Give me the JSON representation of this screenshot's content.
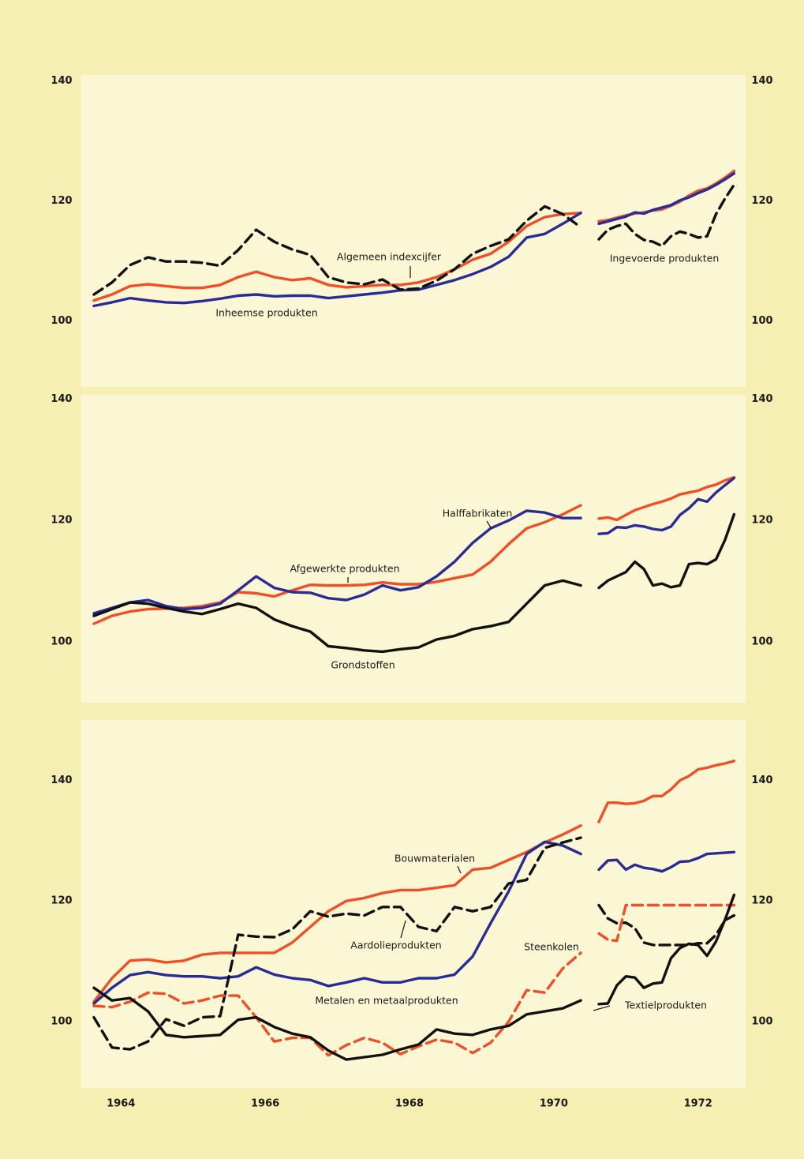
{
  "chart_data": [
    {
      "type": "line",
      "x": [
        1963.625,
        1963.875,
        1964.125,
        1964.375,
        1964.625,
        1964.875,
        1965.125,
        1965.375,
        1965.625,
        1965.875,
        1966.125,
        1966.375,
        1966.625,
        1966.875,
        1967.125,
        1967.375,
        1967.625,
        1967.875,
        1968.125,
        1968.375,
        1968.625,
        1968.875,
        1969.125,
        1969.375,
        1969.625,
        1969.875,
        1970.125,
        1970.375,
        1970.5,
        1970.625,
        1970.75,
        1970.875,
        1971,
        1971.125,
        1971.25,
        1971.375,
        1971.5,
        1971.625,
        1971.75,
        1971.875,
        1972,
        1972.125,
        1972.25,
        1972.375,
        1972.5
      ],
      "xlim": [
        1963.45,
        1972.66
      ],
      "ylim": [
        89,
        141
      ],
      "yticks": [
        100,
        120,
        140
      ],
      "series": [
        {
          "name": "Algemeen indexcijfer",
          "color": "#ef4f27",
          "dash": false,
          "values": [
            103.4,
            104.4,
            105.8,
            106.1,
            105.8,
            105.5,
            105.5,
            106,
            107.3,
            108.2,
            107.3,
            106.8,
            107.1,
            106,
            105.6,
            105.8,
            106,
            106,
            106.4,
            107.3,
            108.6,
            110.2,
            111.2,
            113.2,
            115.8,
            117.3,
            117.8,
            118,
            null,
            116.6,
            116.8,
            117.2,
            117.6,
            117.9,
            118.1,
            118.4,
            118.6,
            119.2,
            119.9,
            120.9,
            121.7,
            122.1,
            122.9,
            123.9,
            125
          ]
        },
        {
          "name": "Inheemse produkten",
          "color": "#2a2c96",
          "dash": false,
          "values": [
            102.5,
            103.1,
            103.8,
            103.4,
            103.1,
            103,
            103.3,
            103.7,
            104.2,
            104.4,
            104.1,
            104.2,
            104.2,
            103.8,
            104.1,
            104.4,
            104.7,
            105.1,
            105.2,
            106,
            106.8,
            107.8,
            109,
            110.7,
            113.9,
            114.5,
            116.2,
            118,
            null,
            116.2,
            116.6,
            117,
            117.4,
            118.1,
            117.9,
            118.5,
            118.9,
            119.3,
            120.1,
            120.6,
            121.3,
            121.9,
            122.7,
            123.6,
            124.6
          ]
        },
        {
          "name": "Ingevoerde produkten",
          "color": "#111111",
          "dash": true,
          "values": [
            104.4,
            106.4,
            109.3,
            110.6,
            109.9,
            109.9,
            109.7,
            109.2,
            111.8,
            115.2,
            113.2,
            111.9,
            111,
            107.3,
            106.4,
            106.1,
            106.9,
            105.2,
            105.4,
            106.7,
            108.6,
            111.2,
            112.5,
            113.6,
            116.7,
            119.1,
            117.8,
            115.6,
            null,
            113.6,
            115.2,
            115.8,
            116.2,
            114.5,
            113.5,
            113.2,
            112.5,
            114.1,
            114.9,
            114.5,
            113.9,
            114.1,
            117.8,
            120.4,
            122.7
          ]
        }
      ]
    },
    {
      "type": "line",
      "x": [
        1963.625,
        1963.875,
        1964.125,
        1964.375,
        1964.625,
        1964.875,
        1965.125,
        1965.375,
        1965.625,
        1965.875,
        1966.125,
        1966.375,
        1966.625,
        1966.875,
        1967.125,
        1967.375,
        1967.625,
        1967.875,
        1968.125,
        1968.375,
        1968.625,
        1968.875,
        1969.125,
        1969.375,
        1969.625,
        1969.875,
        1970.125,
        1970.375,
        1970.5,
        1970.625,
        1970.75,
        1970.875,
        1971,
        1971.125,
        1971.25,
        1971.375,
        1971.5,
        1971.625,
        1971.75,
        1971.875,
        1972,
        1972.125,
        1972.25,
        1972.375,
        1972.5
      ],
      "xlim": [
        1963.45,
        1972.66
      ],
      "ylim": [
        90,
        140.7
      ],
      "yticks": [
        100,
        120,
        140
      ],
      "series": [
        {
          "name": "Afgewerkte produkten",
          "color": "#ef4f27",
          "dash": false,
          "values": [
            103,
            104.3,
            105,
            105.4,
            105.5,
            105.6,
            105.9,
            106.5,
            108.2,
            108,
            107.5,
            108.5,
            109.4,
            109.3,
            109.3,
            109.4,
            109.8,
            109.5,
            109.5,
            109.9,
            110.5,
            111.1,
            113.2,
            116.1,
            118.7,
            119.7,
            121,
            122.5,
            null,
            120.3,
            120.5,
            120.1,
            120.9,
            121.7,
            122.2,
            122.7,
            123.1,
            123.6,
            124.3,
            124.6,
            124.9,
            125.5,
            125.9,
            126.6,
            127.1
          ]
        },
        {
          "name": "Halffabrikaten",
          "color": "#2a2c96",
          "dash": false,
          "values": [
            104.7,
            105.6,
            106.5,
            106.9,
            105.9,
            105.4,
            105.6,
            106.3,
            108.5,
            110.8,
            108.9,
            108.2,
            108.1,
            107.2,
            106.9,
            107.8,
            109.3,
            108.5,
            109,
            110.8,
            113.2,
            116.3,
            118.7,
            120,
            121.6,
            121.3,
            120.4,
            120.4,
            null,
            117.8,
            117.9,
            118.9,
            118.8,
            119.2,
            119,
            118.6,
            118.4,
            119,
            120.9,
            122,
            123.5,
            123.1,
            124.6,
            125.8,
            127
          ]
        },
        {
          "name": "Grondstoffen",
          "color": "#111111",
          "dash": false,
          "values": [
            104.3,
            105.4,
            106.5,
            106.3,
            105.6,
            105,
            104.6,
            105.4,
            106.3,
            105.6,
            103.7,
            102.6,
            101.7,
            99.3,
            99,
            98.6,
            98.4,
            98.8,
            99.1,
            100.4,
            101,
            102.1,
            102.6,
            103.3,
            106.3,
            109.3,
            110.1,
            109.3,
            null,
            108.9,
            110.1,
            110.8,
            111.5,
            113.2,
            112,
            109.3,
            109.6,
            109,
            109.3,
            112.8,
            113,
            112.8,
            113.6,
            116.8,
            121
          ]
        }
      ]
    },
    {
      "type": "line",
      "x": [
        1963.625,
        1963.875,
        1964.125,
        1964.375,
        1964.625,
        1964.875,
        1965.125,
        1965.375,
        1965.625,
        1965.875,
        1966.125,
        1966.375,
        1966.625,
        1966.875,
        1967.125,
        1967.375,
        1967.625,
        1967.875,
        1968.125,
        1968.375,
        1968.625,
        1968.875,
        1969.125,
        1969.375,
        1969.625,
        1969.875,
        1970.125,
        1970.375,
        1970.5,
        1970.625,
        1970.75,
        1970.875,
        1971,
        1971.125,
        1971.25,
        1971.375,
        1971.5,
        1971.625,
        1971.75,
        1971.875,
        1972,
        1972.125,
        1972.25,
        1972.375,
        1972.5
      ],
      "xlim": [
        1963.45,
        1972.66
      ],
      "ylim": [
        89,
        150
      ],
      "yticks": [
        100,
        120,
        140
      ],
      "xticks": [
        1964,
        1966,
        1968,
        1970,
        1972
      ],
      "series": [
        {
          "name": "Bouwmaterialen",
          "color": "#ef4f27",
          "dash": false,
          "values": [
            103.3,
            107.2,
            110.1,
            110.3,
            109.8,
            110.1,
            111.1,
            111.4,
            111.4,
            111.4,
            111.4,
            113.1,
            115.7,
            118.3,
            120,
            120.5,
            121.3,
            121.8,
            121.8,
            122.2,
            122.6,
            125.2,
            125.5,
            126.8,
            128.1,
            129.7,
            131,
            132.5,
            null,
            133.1,
            136.3,
            136.3,
            136.1,
            136.2,
            136.6,
            137.4,
            137.4,
            138.5,
            140,
            140.7,
            141.8,
            142.1,
            142.5,
            142.8,
            143.2
          ]
        },
        {
          "name": "Metalen en metaalprodukten",
          "color": "#2a2c96",
          "dash": false,
          "values": [
            103,
            105.6,
            107.7,
            108.2,
            107.7,
            107.5,
            107.5,
            107.2,
            107.5,
            109,
            107.8,
            107.2,
            106.9,
            105.9,
            106.5,
            107.2,
            106.5,
            106.5,
            107.2,
            107.2,
            107.8,
            110.8,
            116.3,
            121.6,
            127.8,
            129.8,
            129.2,
            127.8,
            null,
            125.2,
            126.7,
            126.8,
            125.2,
            126,
            125.5,
            125.3,
            124.9,
            125.6,
            126.5,
            126.6,
            127.1,
            127.8,
            127.9,
            128,
            128.1
          ]
        },
        {
          "name": "Aardolieprodukten",
          "color": "#111111",
          "dash": true,
          "values": [
            100.7,
            95.7,
            95.4,
            96.7,
            100.4,
            99.3,
            100.7,
            100.9,
            114.4,
            114.1,
            114,
            115.3,
            118.3,
            117.4,
            117.9,
            117.6,
            119,
            119,
            115.7,
            115,
            119,
            118.3,
            119,
            122.9,
            123.5,
            128.8,
            129.7,
            130.5,
            null,
            119.3,
            117.1,
            116.3,
            116.4,
            115.5,
            113.1,
            112.7,
            112.7,
            112.7,
            112.7,
            112.7,
            113,
            113,
            114.4,
            116.8,
            117.6
          ]
        },
        {
          "name": "Steenkolen",
          "color": "#ef4f27",
          "dash": true,
          "values": [
            102.6,
            102.4,
            103.3,
            104.8,
            104.6,
            103,
            103.5,
            104.3,
            104.3,
            100.7,
            96.7,
            97.3,
            97.3,
            94.4,
            96.1,
            97.3,
            96.5,
            94.6,
            95.9,
            97,
            96.5,
            94.8,
            96.5,
            100,
            105.2,
            104.8,
            108.8,
            111.4,
            null,
            114.6,
            113.6,
            113.4,
            119.3,
            119.3,
            119.3,
            119.3,
            119.3,
            119.3,
            119.3,
            119.3,
            119.3,
            119.3,
            119.3,
            119.3,
            119.3
          ]
        },
        {
          "name": "Textielprodukten",
          "color": "#111111",
          "dash": false,
          "values": [
            105.6,
            103.5,
            103.9,
            101.7,
            97.8,
            97.4,
            97.6,
            97.8,
            100.3,
            100.7,
            99.1,
            98,
            97.4,
            95.2,
            93.7,
            94.1,
            94.5,
            95.4,
            96.2,
            98.7,
            98,
            97.8,
            98.7,
            99.3,
            101.2,
            101.7,
            102.2,
            103.5,
            null,
            102.9,
            103,
            106,
            107.5,
            107.3,
            105.6,
            106.3,
            106.5,
            110.5,
            112.2,
            112.9,
            112.7,
            110.9,
            113.3,
            116.9,
            121
          ]
        }
      ]
    }
  ]
}
